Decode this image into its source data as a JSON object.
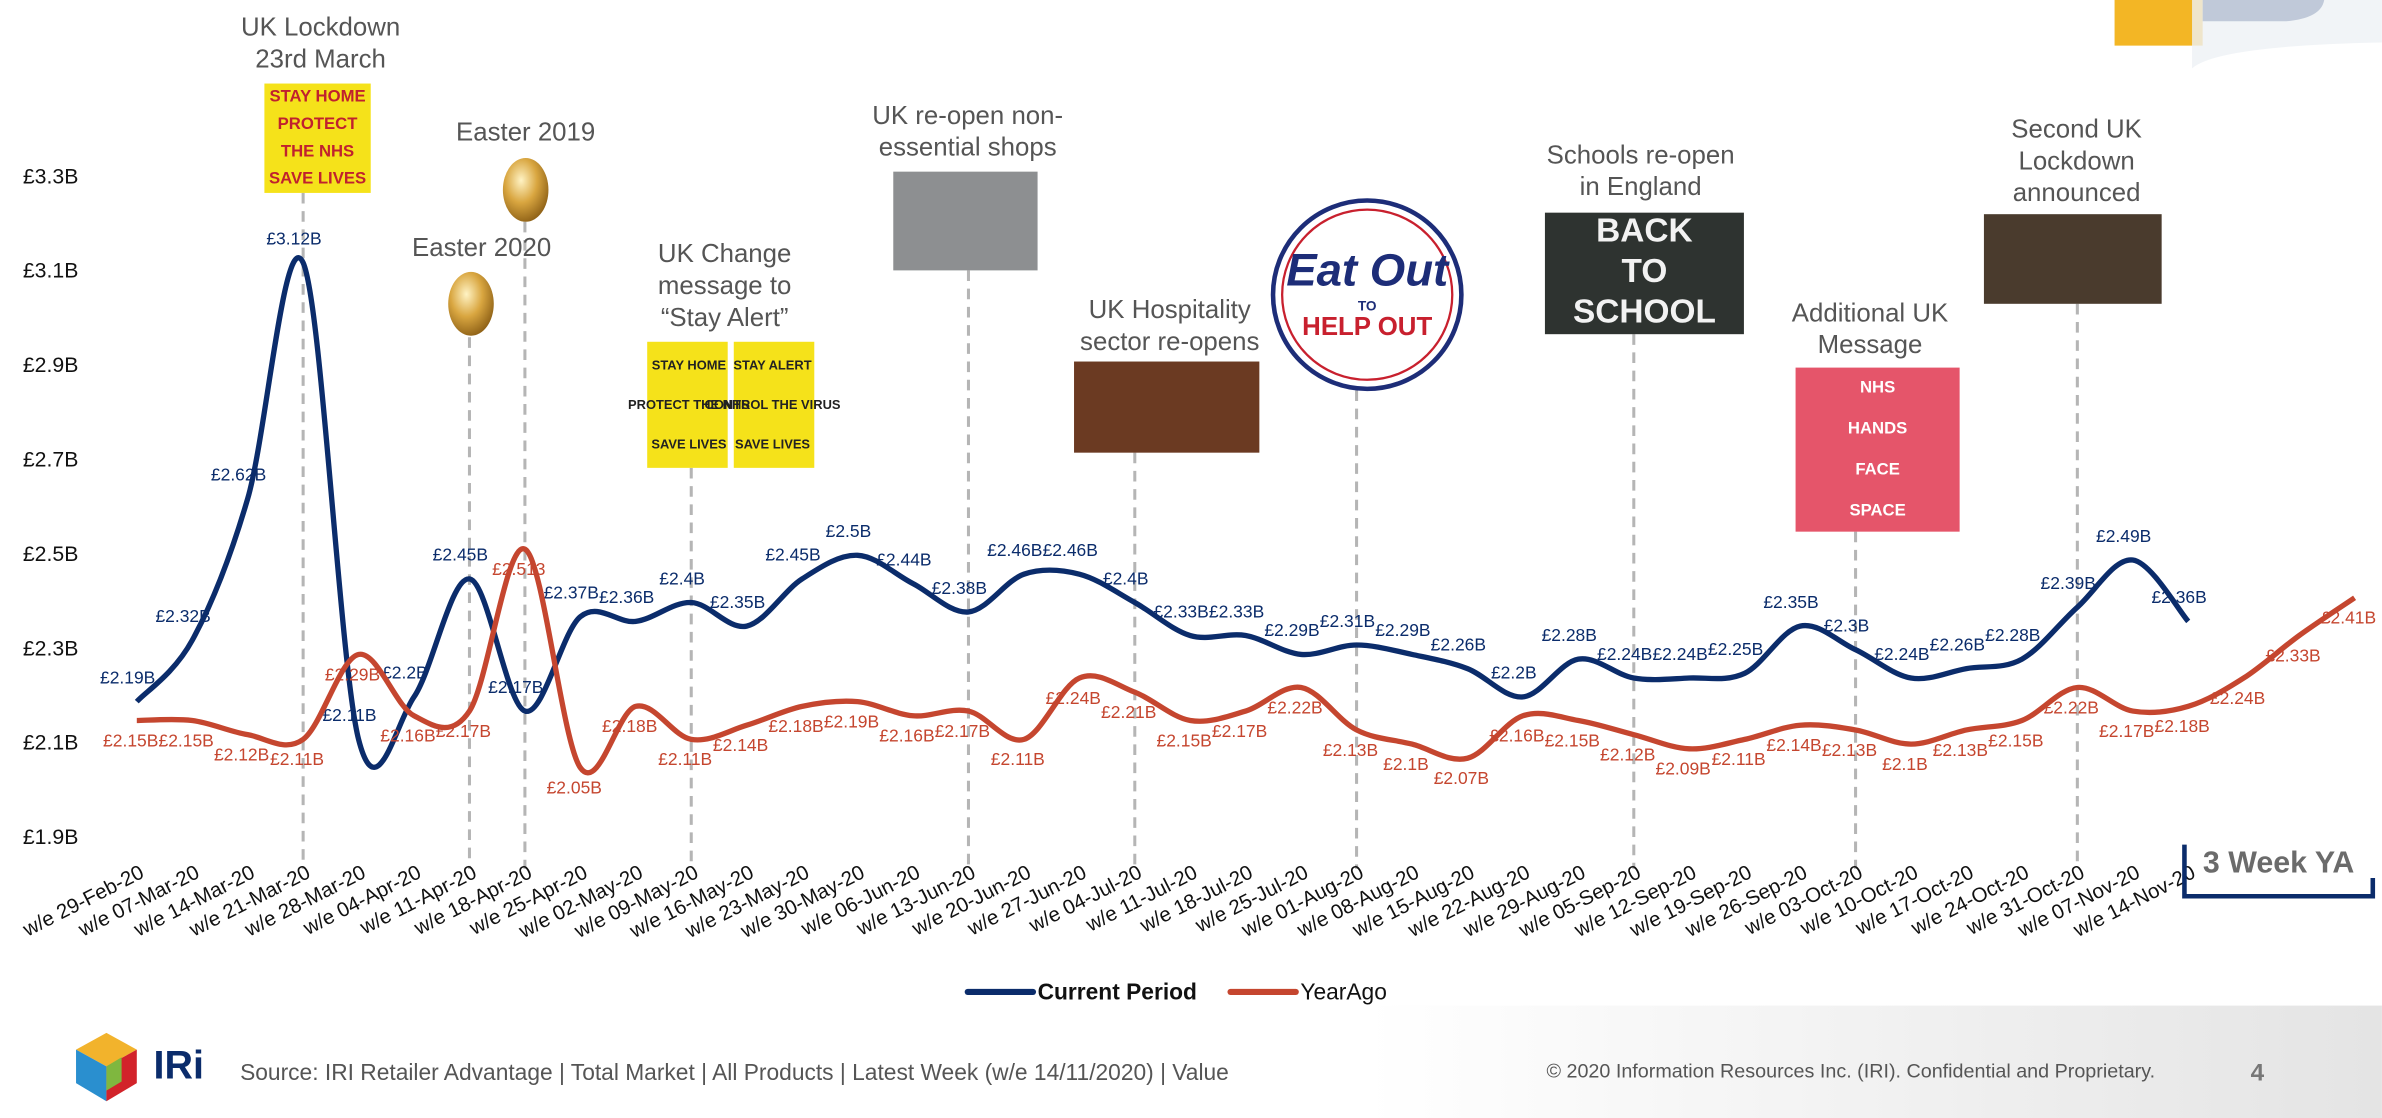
{
  "chart_data": {
    "type": "line",
    "categories": [
      "w/e 29-Feb-20",
      "w/e 07-Mar-20",
      "w/e 14-Mar-20",
      "w/e 21-Mar-20",
      "w/e 28-Mar-20",
      "w/e 04-Apr-20",
      "w/e 11-Apr-20",
      "w/e 18-Apr-20",
      "w/e 25-Apr-20",
      "w/e 02-May-20",
      "w/e 09-May-20",
      "w/e 16-May-20",
      "w/e 23-May-20",
      "w/e 30-May-20",
      "w/e 06-Jun-20",
      "w/e 13-Jun-20",
      "w/e 20-Jun-20",
      "w/e 27-Jun-20",
      "w/e 04-Jul-20",
      "w/e 11-Jul-20",
      "w/e 18-Jul-20",
      "w/e 25-Jul-20",
      "w/e 01-Aug-20",
      "w/e 08-Aug-20",
      "w/e 15-Aug-20",
      "w/e 22-Aug-20",
      "w/e 29-Aug-20",
      "w/e 05-Sep-20",
      "w/e 12-Sep-20",
      "w/e 19-Sep-20",
      "w/e 26-Sep-20",
      "w/e 03-Oct-20",
      "w/e 10-Oct-20",
      "w/e 17-Oct-20",
      "w/e 24-Oct-20",
      "w/e 31-Oct-20",
      "w/e 07-Nov-20",
      "w/e 14-Nov-20",
      null,
      null,
      null
    ],
    "series": [
      {
        "name": "Current Period",
        "color": "#0b2c6b",
        "values": [
          2.19,
          2.32,
          2.62,
          3.12,
          2.11,
          2.2,
          2.45,
          2.17,
          2.37,
          2.36,
          2.4,
          2.35,
          2.45,
          2.5,
          2.44,
          2.38,
          2.46,
          2.46,
          2.4,
          2.33,
          2.33,
          2.29,
          2.31,
          2.29,
          2.26,
          2.2,
          2.28,
          2.24,
          2.24,
          2.25,
          2.35,
          2.3,
          2.24,
          2.26,
          2.28,
          2.39,
          2.49,
          2.36,
          null,
          null,
          null
        ],
        "value_labels": [
          "£2.19B",
          "£2.32B",
          "£2.62B",
          "£3.12B",
          "£2.11B",
          "£2.2B",
          "£2.45B",
          "£2.17B",
          "£2.37B",
          "£2.36B",
          "£2.4B",
          "£2.35B",
          "£2.45B",
          "£2.5B",
          "£2.44B",
          "£2.38B",
          "£2.46B",
          "£2.46B",
          "£2.4B",
          "£2.33B",
          "£2.33B",
          "£2.29B",
          "£2.31B",
          "£2.29B",
          "£2.26B",
          "£2.2B",
          "£2.28B",
          "£2.24B",
          "£2.24B",
          "£2.25B",
          "£2.35B",
          "£2.3B",
          "£2.24B",
          "£2.26B",
          "£2.28B",
          "£2.39B",
          "£2.49B",
          "£2.36B",
          null,
          null,
          null
        ]
      },
      {
        "name": "YearAgo",
        "color": "#c5462f",
        "values": [
          2.15,
          2.15,
          2.12,
          2.11,
          2.29,
          2.16,
          2.17,
          2.513,
          2.05,
          2.18,
          2.11,
          2.14,
          2.18,
          2.19,
          2.16,
          2.17,
          2.11,
          2.24,
          2.21,
          2.15,
          2.17,
          2.22,
          2.13,
          2.1,
          2.07,
          2.16,
          2.15,
          2.12,
          2.09,
          2.11,
          2.14,
          2.13,
          2.1,
          2.13,
          2.15,
          2.22,
          2.17,
          2.18,
          2.24,
          2.33,
          2.41
        ],
        "value_labels": [
          "£2.15B",
          "£2.15B",
          "£2.12B",
          "£2.11B",
          "£2.29B",
          "£2.16B",
          "£2.17B",
          "£2.513",
          "£2.05B",
          "£2.18B",
          "£2.11B",
          "£2.14B",
          "£2.18B",
          "£2.19B",
          "£2.16B",
          "£2.17B",
          "£2.11B",
          "£2.24B",
          "£2.21B",
          "£2.15B",
          "£2.17B",
          "£2.22B",
          "£2.13B",
          "£2.1B",
          "£2.07B",
          "£2.16B",
          "£2.15B",
          "£2.12B",
          "£2.09B",
          "£2.11B",
          "£2.14B",
          "£2.13B",
          "£2.1B",
          "£2.13B",
          "£2.15B",
          "£2.22B",
          "£2.17B",
          "£2.18B",
          "£2.24B",
          "£2.33B",
          "£2.41B"
        ]
      }
    ],
    "ylim": [
      1.9,
      3.3
    ],
    "yticks": [
      {
        "value": 1.9,
        "label": "£1.9B"
      },
      {
        "value": 2.1,
        "label": "£2.1B"
      },
      {
        "value": 2.3,
        "label": "£2.3B"
      },
      {
        "value": 2.5,
        "label": "£2.5B"
      },
      {
        "value": 2.7,
        "label": "£2.7B"
      },
      {
        "value": 2.9,
        "label": "£2.9B"
      },
      {
        "value": 3.1,
        "label": "£3.1B"
      },
      {
        "value": 3.3,
        "label": "£3.3B"
      }
    ],
    "grid": false,
    "legend": "bottom",
    "annotations": [
      {
        "lines": [
          "UK Lockdown",
          "23rd March"
        ],
        "image_text": [
          "STAY HOME",
          "PROTECT",
          "THE NHS",
          "SAVE LIVES"
        ]
      },
      {
        "lines": [
          "Easter 2019"
        ],
        "image_text": []
      },
      {
        "lines": [
          "Easter 2020"
        ],
        "image_text": []
      },
      {
        "lines": [
          "UK Change",
          "message to",
          "“Stay Alert”"
        ],
        "image_text": [
          "STAY HOME",
          "PROTECT THE NHS",
          "SAVE LIVES",
          "STAY ALERT",
          "CONTROL THE VIRUS",
          "SAVE LIVES"
        ]
      },
      {
        "lines": [
          "UK re-open non-",
          "essential shops"
        ],
        "image_text": []
      },
      {
        "lines": [
          "UK Hospitality",
          "sector re-opens"
        ],
        "image_text": []
      },
      {
        "lines": [],
        "image_text": [
          "Eat Out",
          "TO",
          "HELP OUT"
        ]
      },
      {
        "lines": [
          "Schools re-open",
          "in England"
        ],
        "image_text": [
          "BACK",
          "TO",
          "SCHOOL"
        ]
      },
      {
        "lines": [
          "Additional UK",
          "Message"
        ],
        "image_text": [
          "NHS",
          "HANDS",
          "FACE",
          "SPACE"
        ]
      },
      {
        "lines": [
          "Second UK",
          "Lockdown",
          "announced"
        ],
        "image_text": []
      }
    ],
    "note_box": "3 Week YA"
  },
  "footer": {
    "logo": "IRi",
    "source": "Source: IRI Retailer Advantage | Total Market | All Products | Latest Week (w/e 14/11/2020) | Value",
    "copyright": "© 2020 Information Resources Inc. (IRI). Confidential and Proprietary.",
    "page": "4"
  }
}
